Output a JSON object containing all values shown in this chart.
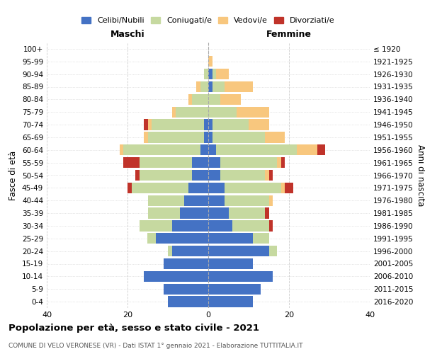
{
  "age_groups": [
    "0-4",
    "5-9",
    "10-14",
    "15-19",
    "20-24",
    "25-29",
    "30-34",
    "35-39",
    "40-44",
    "45-49",
    "50-54",
    "55-59",
    "60-64",
    "65-69",
    "70-74",
    "75-79",
    "80-84",
    "85-89",
    "90-94",
    "95-99",
    "100+"
  ],
  "birth_years": [
    "2016-2020",
    "2011-2015",
    "2006-2010",
    "2001-2005",
    "1996-2000",
    "1991-1995",
    "1986-1990",
    "1981-1985",
    "1976-1980",
    "1971-1975",
    "1966-1970",
    "1961-1965",
    "1956-1960",
    "1951-1955",
    "1946-1950",
    "1941-1945",
    "1936-1940",
    "1931-1935",
    "1926-1930",
    "1921-1925",
    "≤ 1920"
  ],
  "male": {
    "celibi": [
      10,
      11,
      16,
      11,
      9,
      13,
      9,
      7,
      6,
      5,
      4,
      4,
      2,
      1,
      1,
      0,
      0,
      0,
      0,
      0,
      0
    ],
    "coniugati": [
      0,
      0,
      0,
      0,
      1,
      2,
      8,
      8,
      9,
      14,
      13,
      13,
      19,
      14,
      13,
      8,
      4,
      2,
      1,
      0,
      0
    ],
    "vedovi": [
      0,
      0,
      0,
      0,
      0,
      0,
      0,
      0,
      0,
      0,
      0,
      0,
      1,
      1,
      1,
      1,
      1,
      1,
      0,
      0,
      0
    ],
    "divorziati": [
      0,
      0,
      0,
      0,
      0,
      0,
      0,
      0,
      0,
      1,
      1,
      4,
      0,
      0,
      1,
      0,
      0,
      0,
      0,
      0,
      0
    ]
  },
  "female": {
    "nubili": [
      11,
      13,
      16,
      11,
      15,
      11,
      6,
      5,
      4,
      4,
      3,
      3,
      2,
      1,
      1,
      0,
      0,
      1,
      1,
      0,
      0
    ],
    "coniugate": [
      0,
      0,
      0,
      0,
      2,
      4,
      9,
      9,
      11,
      14,
      11,
      14,
      20,
      13,
      9,
      7,
      3,
      3,
      1,
      0,
      0
    ],
    "vedove": [
      0,
      0,
      0,
      0,
      0,
      0,
      0,
      0,
      1,
      1,
      1,
      1,
      5,
      5,
      5,
      8,
      5,
      7,
      3,
      1,
      0
    ],
    "divorziate": [
      0,
      0,
      0,
      0,
      0,
      0,
      1,
      1,
      0,
      2,
      1,
      1,
      2,
      0,
      0,
      0,
      0,
      0,
      0,
      0,
      0
    ]
  },
  "colors": {
    "celibi": "#4472C4",
    "coniugati": "#C6D9A0",
    "vedovi": "#F8C77E",
    "divorziati": "#C0332A"
  },
  "xlim": 40,
  "title": "Popolazione per età, sesso e stato civile - 2021",
  "subtitle": "COMUNE DI VELO VERONESE (VR) - Dati ISTAT 1° gennaio 2021 - Elaborazione TUTTITALIA.IT",
  "ylabel_left": "Fasce di età",
  "ylabel_right": "Anni di nascita",
  "xlabel_left": "Maschi",
  "xlabel_right": "Femmine"
}
